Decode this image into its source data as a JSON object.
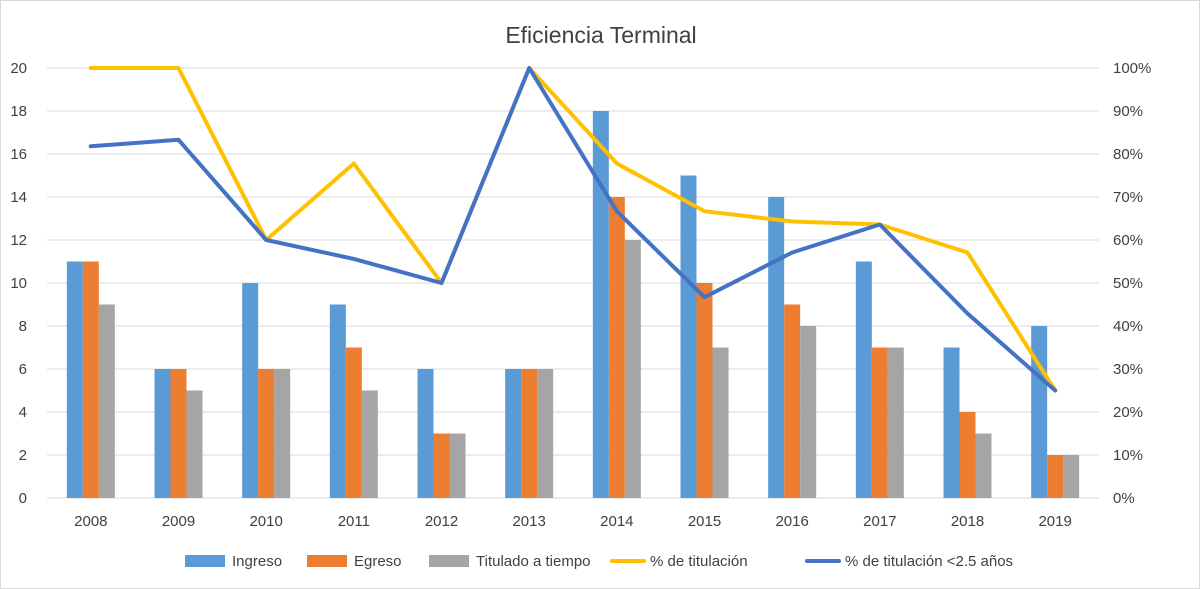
{
  "chart_data": {
    "type": "bar",
    "title": "Eficiencia Terminal",
    "categories": [
      "2008",
      "2009",
      "2010",
      "2011",
      "2012",
      "2013",
      "2014",
      "2015",
      "2016",
      "2017",
      "2018",
      "2019"
    ],
    "y_left": {
      "min": 0,
      "max": 20,
      "step": 2,
      "ticks": [
        "0",
        "2",
        "4",
        "6",
        "8",
        "10",
        "12",
        "14",
        "16",
        "18",
        "20"
      ]
    },
    "y_right": {
      "min": 0,
      "max": 1,
      "step": 0.1,
      "ticks": [
        "0%",
        "10%",
        "20%",
        "30%",
        "40%",
        "50%",
        "60%",
        "70%",
        "80%",
        "90%",
        "100%"
      ]
    },
    "grid": true,
    "legend_position": "bottom",
    "bar_series": [
      {
        "name": "Ingreso",
        "color": "#5b9bd5",
        "values": [
          11,
          6,
          10,
          9,
          6,
          6,
          18,
          15,
          14,
          11,
          7,
          8
        ]
      },
      {
        "name": "Egreso",
        "color": "#ed7d31",
        "values": [
          11,
          6,
          6,
          7,
          3,
          6,
          14,
          10,
          9,
          7,
          4,
          2
        ]
      },
      {
        "name": "Titulado a tiempo",
        "color": "#a5a5a5",
        "values": [
          9,
          5,
          6,
          5,
          3,
          6,
          12,
          7,
          8,
          7,
          3,
          2
        ]
      }
    ],
    "line_series": [
      {
        "name": "% de titulación",
        "color": "#ffc000",
        "axis": "right",
        "values": [
          1.0,
          1.0,
          0.6,
          0.778,
          0.5,
          1.0,
          0.778,
          0.667,
          0.643,
          0.636,
          0.571,
          0.25
        ]
      },
      {
        "name": "% de titulación <2.5 años",
        "color": "#4472c4",
        "axis": "right",
        "values": [
          0.818,
          0.833,
          0.6,
          0.556,
          0.5,
          1.0,
          0.667,
          0.467,
          0.571,
          0.636,
          0.429,
          0.25
        ]
      }
    ]
  }
}
